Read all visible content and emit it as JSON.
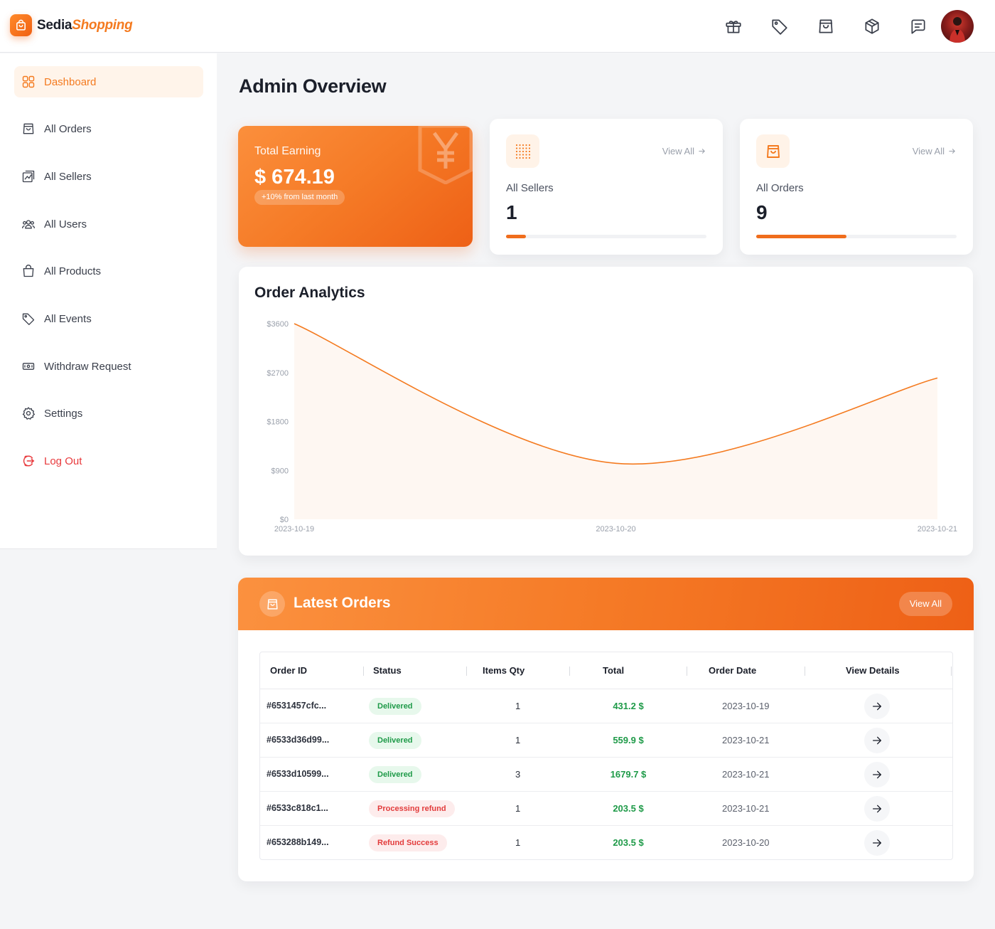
{
  "brand": {
    "part1": "Sedia",
    "part2": "Shopping"
  },
  "header": {
    "icons": [
      "gift-icon",
      "tag-icon",
      "shopping-bag-icon",
      "package-icon",
      "message-icon"
    ]
  },
  "sidebar": {
    "items": [
      {
        "label": "Dashboard",
        "icon": "grid-icon",
        "active": true
      },
      {
        "label": "All Orders",
        "icon": "shopping-bag-icon"
      },
      {
        "label": "All Sellers",
        "icon": "sellers-icon"
      },
      {
        "label": "All Users",
        "icon": "users-icon"
      },
      {
        "label": "All Products",
        "icon": "shopping-bag-icon"
      },
      {
        "label": "All Events",
        "icon": "tag-icon"
      },
      {
        "label": "Withdraw Request",
        "icon": "money-icon"
      },
      {
        "label": "Settings",
        "icon": "gear-icon"
      },
      {
        "label": "Log Out",
        "icon": "logout-icon"
      }
    ]
  },
  "page": {
    "title": "Admin Overview"
  },
  "earning": {
    "label": "Total Earning",
    "value": "$ 674.19",
    "badge": "+10% from last month",
    "icon": "yen-icon"
  },
  "sellers": {
    "label": "All Sellers",
    "value": "1",
    "view_all": "View All",
    "progress": 0.1,
    "icon": "dots-grid-icon"
  },
  "orders_stat": {
    "label": "All Orders",
    "value": "9",
    "view_all": "View All",
    "progress": 0.45,
    "icon": "shopping-bag-icon"
  },
  "chart": {
    "title": "Order Analytics",
    "accent": "#f47a1f"
  },
  "chart_data": {
    "type": "area",
    "title": "Order Analytics",
    "x": [
      "2023-10-19",
      "2023-10-20",
      "2023-10-21"
    ],
    "series": [
      {
        "values": [
          3600,
          1030,
          2600
        ]
      }
    ],
    "ylim": [
      0,
      3600
    ],
    "yticks": [
      "$3600",
      "$2700",
      "$1800",
      "$900",
      "$0"
    ],
    "xticks": [
      "2023-10-19",
      "2023-10-20",
      "2023-10-21"
    ],
    "grid": false
  },
  "latest_orders": {
    "title": "Latest Orders",
    "view_all": "View All",
    "columns": [
      "Order ID",
      "Status",
      "Items Qty",
      "Total",
      "Order Date",
      "View Details"
    ],
    "rows": [
      {
        "id": "#6531457cfc...",
        "status": "Delivered",
        "status_kind": "ok",
        "qty": "1",
        "total": "431.2 $",
        "date": "2023-10-19"
      },
      {
        "id": "#6533d36d99...",
        "status": "Delivered",
        "status_kind": "ok",
        "qty": "1",
        "total": "559.9 $",
        "date": "2023-10-21"
      },
      {
        "id": "#6533d10599...",
        "status": "Delivered",
        "status_kind": "ok",
        "qty": "3",
        "total": "1679.7 $",
        "date": "2023-10-21"
      },
      {
        "id": "#6533c818c1...",
        "status": "Processing refund",
        "status_kind": "bad",
        "qty": "1",
        "total": "203.5 $",
        "date": "2023-10-21"
      },
      {
        "id": "#653288b149...",
        "status": "Refund Success",
        "status_kind": "bad",
        "qty": "1",
        "total": "203.5 $",
        "date": "2023-10-20"
      }
    ]
  },
  "colors": {
    "accent": "#f47a1f",
    "success": "#1e9a48",
    "danger": "#e23b3b"
  }
}
